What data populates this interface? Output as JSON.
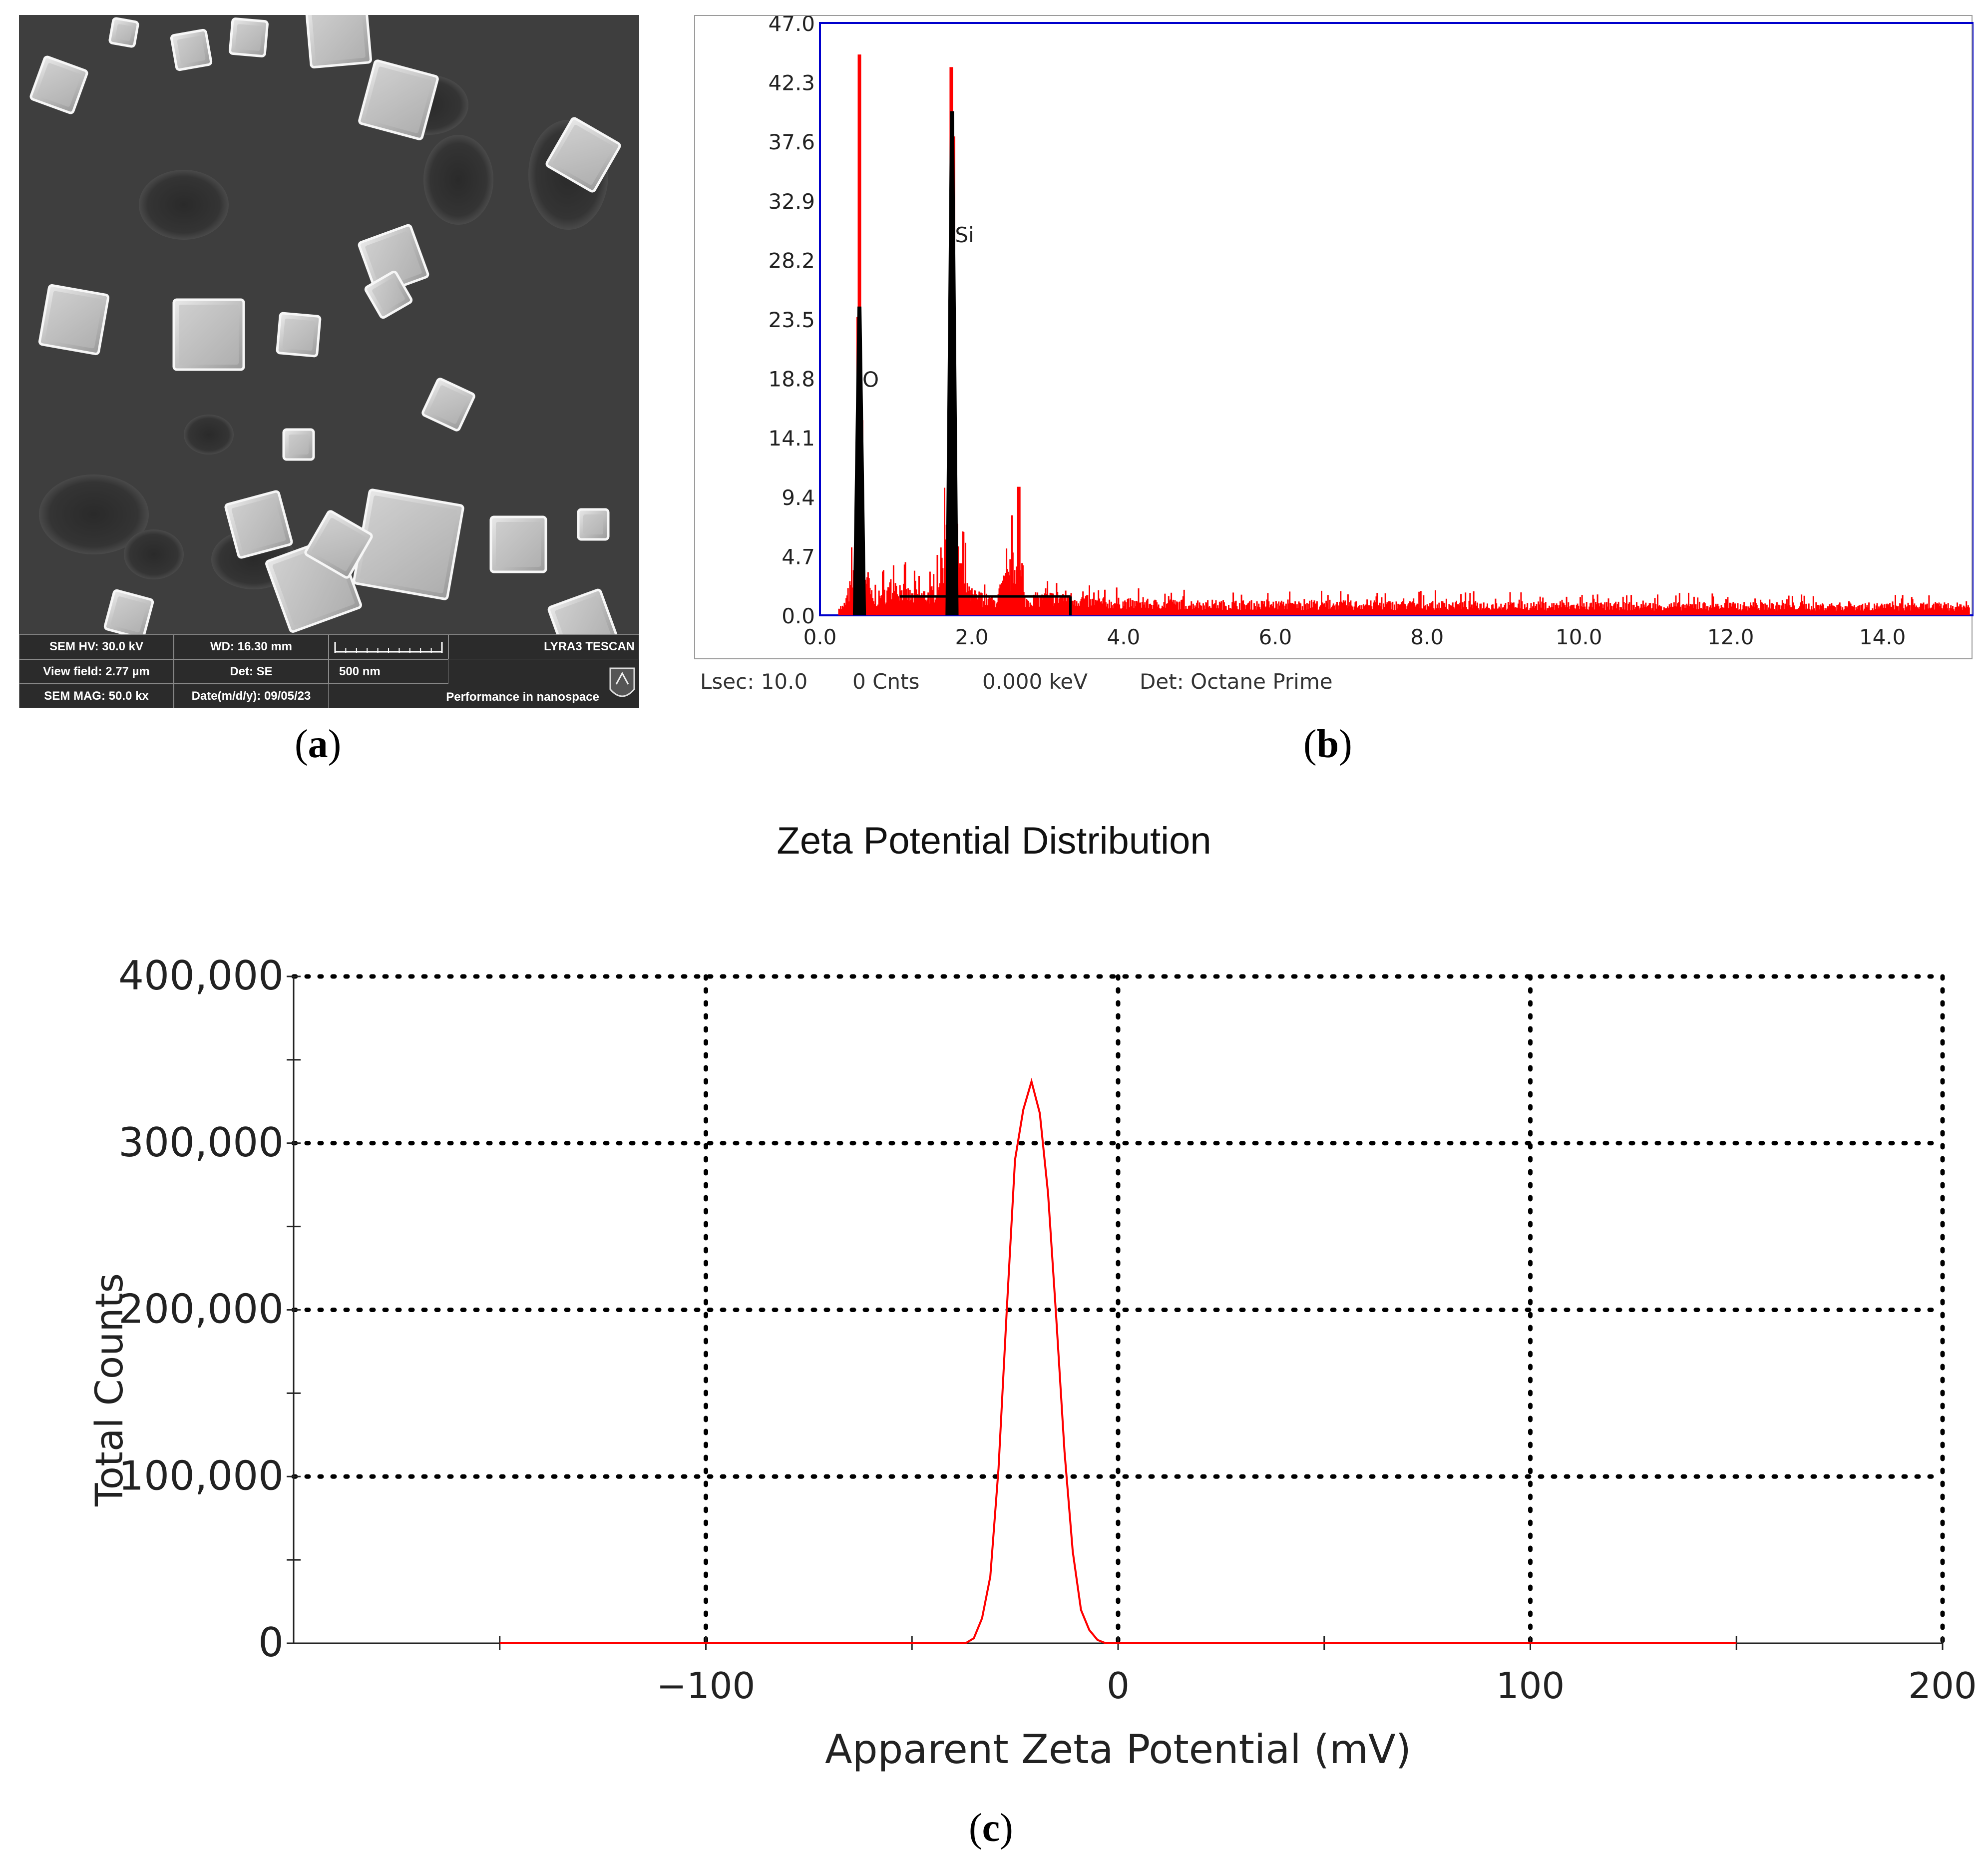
{
  "figure": {
    "captions": {
      "a_open": "(",
      "a_letter": "a",
      "a_close": ")",
      "b_open": "(",
      "b_letter": "b",
      "b_close": ")",
      "c_open": "(",
      "c_letter": "c",
      "c_close": ")"
    }
  },
  "sem": {
    "info": {
      "hv": "SEM HV: 30.0 kV",
      "wd": "WD: 16.30 mm",
      "brand": "LYRA3 TESCAN",
      "view_field": "View field: 2.77 µm",
      "det": "Det: SE",
      "scale": "500 nm",
      "mag": "SEM MAG: 50.0 kx",
      "date": "Date(m/d/y): 09/05/23",
      "tagline": "Performance in nanospace"
    }
  },
  "eds": {
    "status": {
      "lsec": "Lsec: 10.0",
      "cnts": "0 Cnts",
      "kev": "0.000 keV",
      "det": "Det: Octane Prime"
    },
    "colors": {
      "spectrum": "#ff0000",
      "fit": "#000000",
      "frame": "#0000cc"
    }
  },
  "chart_data": [
    {
      "type": "line",
      "panel": "b",
      "title": "",
      "xlabel": "",
      "ylabel": "",
      "xlim": [
        0,
        15.2
      ],
      "ylim": [
        0,
        47.0
      ],
      "yticks": [
        "0.0",
        "4.7",
        "9.4",
        "14.1",
        "18.8",
        "23.5",
        "28.2",
        "32.9",
        "37.6",
        "42.3",
        "47.0"
      ],
      "xticks": [
        "0.0",
        "2.0",
        "4.0",
        "6.0",
        "8.0",
        "10.0",
        "12.0",
        "14.0"
      ],
      "peaks": [
        {
          "label": "O",
          "x": 0.52,
          "y": 24.5
        },
        {
          "label": "Si",
          "x": 1.74,
          "y": 40.0
        }
      ],
      "series": [
        {
          "values_x": [
            0.3,
            0.45,
            0.52,
            0.58,
            0.7,
            1.0,
            1.2,
            1.5,
            1.65,
            1.74,
            1.8,
            1.95,
            2.3,
            2.6,
            2.7,
            3.2,
            3.6,
            4.3,
            6.0,
            8.0,
            10.0,
            12.0,
            14.0,
            15.2
          ],
          "values_y": [
            1.0,
            7.0,
            45.0,
            9.0,
            2.5,
            5.5,
            3.5,
            4.0,
            12.0,
            43.5,
            13.0,
            4.0,
            2.5,
            10.0,
            2.8,
            3.5,
            2.5,
            2.2,
            2.0,
            2.0,
            1.8,
            1.8,
            1.7,
            1.7
          ]
        }
      ]
    },
    {
      "type": "line",
      "panel": "c",
      "title": "Zeta Potential Distribution",
      "xlabel": "Apparent Zeta Potential (mV)",
      "ylabel": "Total Counts",
      "xlim": [
        -200,
        200
      ],
      "ylim": [
        0,
        400000
      ],
      "xticks": [
        "−100",
        "0",
        "100",
        "200"
      ],
      "yticks": [
        "0",
        "100,000",
        "200,000",
        "300,000",
        "400,000"
      ],
      "grid": true,
      "series": [
        {
          "color": "#ff0000",
          "x": [
            -150,
            -100,
            -50,
            -37,
            -35,
            -33,
            -31,
            -29,
            -27,
            -25,
            -23,
            -21,
            -19,
            -17,
            -15,
            -13,
            -11,
            -9,
            -7,
            -5,
            -3,
            0,
            50,
            100,
            150
          ],
          "y": [
            0,
            0,
            0,
            0,
            3000,
            15000,
            40000,
            105000,
            200000,
            290000,
            320000,
            337000,
            318000,
            270000,
            195000,
            115000,
            55000,
            20000,
            8000,
            2000,
            0,
            0,
            0,
            0,
            0
          ]
        }
      ]
    }
  ]
}
